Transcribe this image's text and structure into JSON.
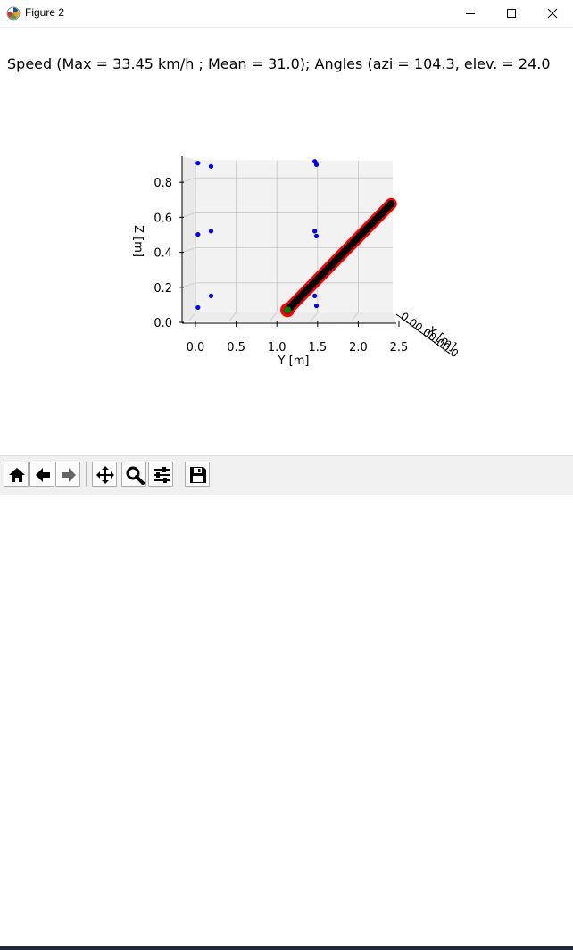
{
  "window": {
    "title": "Figure 2",
    "app_icon": "matplotlib-logo-icon",
    "controls": [
      "minimize-icon",
      "maximize-icon",
      "close-icon"
    ]
  },
  "figure": {
    "title": "Speed (Max = 33.45 km/h ; Mean = 31.0); Angles (azi = 104.3, elev. = 24.0"
  },
  "chart_data": {
    "type": "scatter",
    "projection": "3d",
    "axes": {
      "y": {
        "label": "Y [m]",
        "ticks": [
          "0.0",
          "0.5",
          "1.0",
          "1.5",
          "2.0",
          "2.5"
        ]
      },
      "z": {
        "label": "Z [m]",
        "ticks": [
          "0.0",
          "0.2",
          "0.4",
          "0.6",
          "0.8"
        ]
      },
      "x": {
        "label": "X [m]",
        "tick_text": "0.00.00.00.0"
      }
    },
    "grid": true,
    "series": [
      {
        "type": "line",
        "color": "#ff0000",
        "y": [
          1.05,
          2.32
        ],
        "z": [
          0.02,
          0.66
        ]
      },
      {
        "type": "points",
        "color": "#000000",
        "y": [
          1.05,
          2.32
        ],
        "z": [
          0.02,
          0.66
        ],
        "count": 34
      },
      {
        "type": "points",
        "color": "#0000ff",
        "points": [
          [
            0.02,
            0.9
          ],
          [
            0.18,
            0.88
          ],
          [
            0.02,
            0.47
          ],
          [
            0.18,
            0.49
          ],
          [
            0.02,
            0.03
          ],
          [
            0.18,
            0.1
          ],
          [
            1.45,
            0.91
          ],
          [
            1.47,
            0.89
          ],
          [
            1.45,
            0.49
          ],
          [
            1.47,
            0.46
          ],
          [
            1.45,
            0.1
          ],
          [
            1.47,
            0.04
          ]
        ]
      },
      {
        "type": "point",
        "color": "#008000",
        "y": [
          1.05
        ],
        "z": [
          0.02
        ]
      }
    ],
    "colors": {
      "line": "#ff0000",
      "points": "#000000",
      "projection": "#0000ff",
      "start": "#008000",
      "pane": "#f2f2f2",
      "grid": "#c8c8c8"
    }
  },
  "toolbar": {
    "buttons": [
      {
        "name": "home-button",
        "icon": "home-icon"
      },
      {
        "name": "back-button",
        "icon": "arrow-left-icon"
      },
      {
        "name": "forward-button",
        "icon": "arrow-right-icon"
      },
      {
        "name": "pan-button",
        "icon": "move-icon"
      },
      {
        "name": "zoom-button",
        "icon": "magnifier-icon"
      },
      {
        "name": "subplots-button",
        "icon": "sliders-icon"
      },
      {
        "name": "save-button",
        "icon": "floppy-disk-icon"
      }
    ]
  }
}
